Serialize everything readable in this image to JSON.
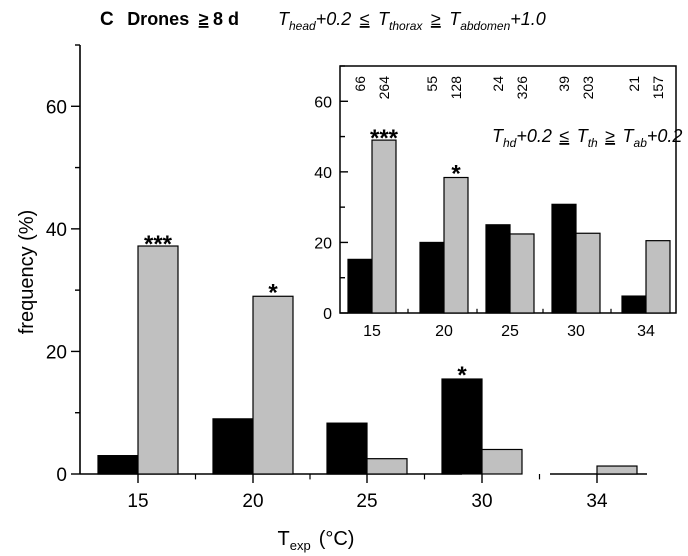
{
  "panel": {
    "letter": "C",
    "group": "Drones",
    "age": "8 d",
    "age_rel": "≥"
  },
  "condition_main": {
    "t1": "T",
    "t1_sub": "head",
    "t1_add": "+0.2",
    "op1": "≤",
    "t2": "T",
    "t2_sub": "thorax",
    "op2": "≥",
    "t3": "T",
    "t3_sub": "abdomen",
    "t3_add": "+1.0"
  },
  "condition_inset": {
    "t1": "T",
    "t1_sub": "hd",
    "t1_add": "+0.2",
    "op1": "≤",
    "t2": "T",
    "t2_sub": "th",
    "op2": "≥",
    "t3": "T",
    "t3_sub": "ab",
    "t3_add": "+0.2"
  },
  "chart_data": [
    {
      "id": "main",
      "type": "bar",
      "categories": [
        "15",
        "20",
        "25",
        "30",
        "34"
      ],
      "series": [
        {
          "color": "#000000",
          "values": [
            3.0,
            9.0,
            8.3,
            15.5,
            0.0
          ]
        },
        {
          "color": "#c0c0c0",
          "values": [
            37.2,
            29.0,
            2.5,
            4.0,
            1.3
          ]
        }
      ],
      "ylim": [
        0,
        70
      ],
      "yticks": [
        "0",
        "20",
        "40",
        "60"
      ],
      "ylabel": "frequency (%)",
      "xlabel": "T",
      "xlabel_sub": "exp",
      "xlabel_unit": "(°C)",
      "significance": [
        {
          "category": "15",
          "series": 1,
          "text": "***"
        },
        {
          "category": "20",
          "series": 1,
          "text": "*"
        },
        {
          "category": "30",
          "series": 0,
          "text": "*"
        }
      ]
    },
    {
      "id": "inset",
      "type": "bar",
      "categories": [
        "15",
        "20",
        "25",
        "30",
        "34"
      ],
      "series": [
        {
          "color": "#000000",
          "values": [
            15.2,
            20.0,
            25.0,
            30.8,
            4.8
          ],
          "n": [
            "66",
            "55",
            "24",
            "39",
            "21"
          ]
        },
        {
          "color": "#c0c0c0",
          "values": [
            49.0,
            38.4,
            22.4,
            22.6,
            20.5
          ],
          "n": [
            "264",
            "128",
            "326",
            "203",
            "157"
          ]
        }
      ],
      "ylim": [
        0,
        70
      ],
      "yticks": [
        "0",
        "20",
        "40",
        "60"
      ],
      "significance": [
        {
          "category": "15",
          "series": 1,
          "text": "***"
        },
        {
          "category": "20",
          "series": 1,
          "text": "*"
        }
      ]
    }
  ]
}
